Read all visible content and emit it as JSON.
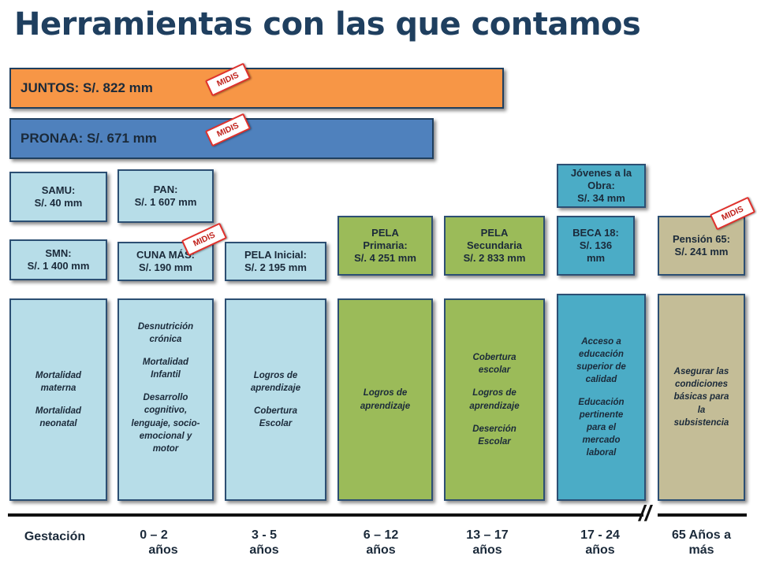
{
  "title": "Herramientas con las que contamos",
  "badge_label": "MIDIS",
  "bars": {
    "juntos": "JUNTOS: S/. 822 mm",
    "pronaa": "PRONAA: S/. 671 mm"
  },
  "programs": {
    "samu": [
      "SAMU:",
      "S/.  40 mm"
    ],
    "smn": [
      "SMN:",
      "S/. 1 400 mm"
    ],
    "pan": [
      "PAN:",
      "S/. 1 607 mm"
    ],
    "cuna_mas": [
      "CUNA MÁS:",
      "S/. 190 mm"
    ],
    "pela_inicial": [
      "PELA Inicial:",
      "S/. 2 195 mm"
    ],
    "pela_primaria": [
      "PELA",
      "Primaria:",
      "S/. 4 251 mm"
    ],
    "pela_secundaria": [
      "PELA",
      "Secundaria",
      "S/. 2 833 mm"
    ],
    "jovenes": [
      "Jóvenes a la",
      "Obra:",
      "S/.  34 mm"
    ],
    "beca18": [
      "BECA 18:",
      "S/. 136",
      "mm"
    ],
    "pension65": [
      "Pensión 65:",
      "S/. 241 mm"
    ]
  },
  "outcomes": {
    "gestacion": [
      [
        "Mortalidad",
        "materna"
      ],
      [
        "Mortalidad",
        "neonatal"
      ]
    ],
    "edad_0_2": [
      [
        "Desnutrición",
        "crónica"
      ],
      [
        "Mortalidad",
        "Infantil"
      ],
      [
        "Desarrollo",
        "cognitivo,",
        "lenguaje, socio-",
        "emocional y",
        "motor"
      ]
    ],
    "edad_3_5": [
      [
        "Logros de",
        "aprendizaje"
      ],
      [
        "Cobertura",
        "Escolar"
      ]
    ],
    "edad_6_12": [
      [
        "Logros de",
        "aprendizaje"
      ]
    ],
    "edad_13_17": [
      [
        "Cobertura",
        "escolar"
      ],
      [
        "Logros de",
        "aprendizaje"
      ],
      [
        "Deserción",
        "Escolar"
      ]
    ],
    "edad_17_24": [
      [
        "Acceso a",
        "educación",
        "superior de",
        "calidad"
      ],
      [
        "Educación",
        "pertinente",
        "para el",
        "mercado",
        "laboral"
      ]
    ],
    "edad_65": [
      [
        "Asegurar las",
        "condiciones",
        "básicas para",
        "la",
        "subsistencia"
      ]
    ]
  },
  "axis": {
    "gestacion": "Gestación",
    "edad_0_2": [
      "0 – 2",
      "años"
    ],
    "edad_3_5": [
      "3 - 5",
      "años"
    ],
    "edad_6_12": [
      "6 – 12",
      "años"
    ],
    "edad_13_17": [
      "13 – 17",
      "años"
    ],
    "edad_17_24": [
      "17 - 24",
      "años"
    ],
    "edad_65": [
      "65  Años a",
      "más"
    ],
    "break_mark": "//"
  },
  "colors": {
    "juntos": "#f79646",
    "pronaa": "#4f81bd",
    "light_blue": "#b7dde8",
    "green": "#9bbb59",
    "teal": "#4bacc6",
    "tan": "#c4bd97",
    "badge_red": "#e0312c"
  }
}
